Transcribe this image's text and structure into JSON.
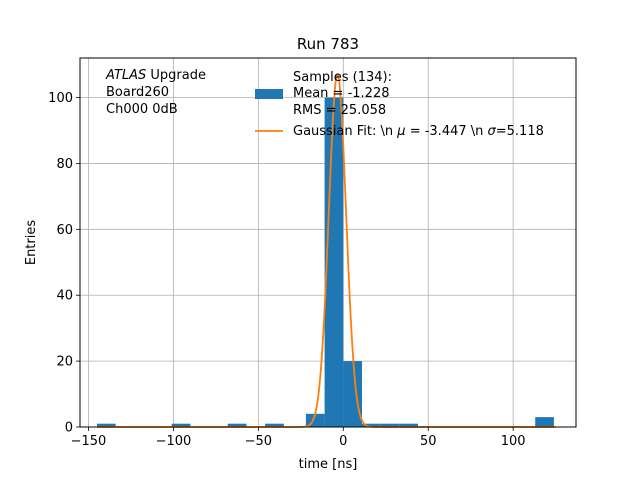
{
  "chart_data": {
    "type": "bar",
    "title": "Run 783",
    "xlabel": "time [ns]",
    "ylabel": "Entries",
    "xlim": [
      -155,
      137
    ],
    "ylim": [
      0,
      112
    ],
    "grid": true,
    "xticks": [
      -150,
      -100,
      -50,
      0,
      50,
      100
    ],
    "yticks": [
      0,
      20,
      40,
      60,
      80,
      100
    ],
    "annotation": {
      "italic": "ATLAS",
      "rest": " Upgrade",
      "line2": " Board260",
      "line3": " Ch000 0dB"
    },
    "legend": {
      "placement": "top-center",
      "hist_lines": [
        "Samples (134):",
        " Mean = -1.228",
        " RMS = 25.058"
      ],
      "fit_prefix": "Gaussian Fit: \\n ",
      "fit_mu_sym": "μ",
      "fit_mid": " = -3.447 \\n ",
      "fit_sigma_sym": "σ",
      "fit_suffix": "=5.118"
    },
    "series": [
      {
        "kind": "histogram",
        "color": "#1f77b4",
        "bin_width": 11,
        "bins": [
          {
            "x0": -145,
            "count": 1
          },
          {
            "x0": -101,
            "count": 1
          },
          {
            "x0": -68,
            "count": 1
          },
          {
            "x0": -46,
            "count": 1
          },
          {
            "x0": -22,
            "count": 4
          },
          {
            "x0": -11,
            "count": 100
          },
          {
            "x0": 0,
            "count": 20
          },
          {
            "x0": 11,
            "count": 1
          },
          {
            "x0": 22,
            "count": 1
          },
          {
            "x0": 33,
            "count": 1
          },
          {
            "x0": 113,
            "count": 3
          }
        ]
      },
      {
        "kind": "gaussian",
        "color": "#ff7f0e",
        "amplitude": 107,
        "mean": -3.447,
        "sigma": 5.118,
        "x_range": [
          -145,
          125
        ]
      }
    ]
  }
}
